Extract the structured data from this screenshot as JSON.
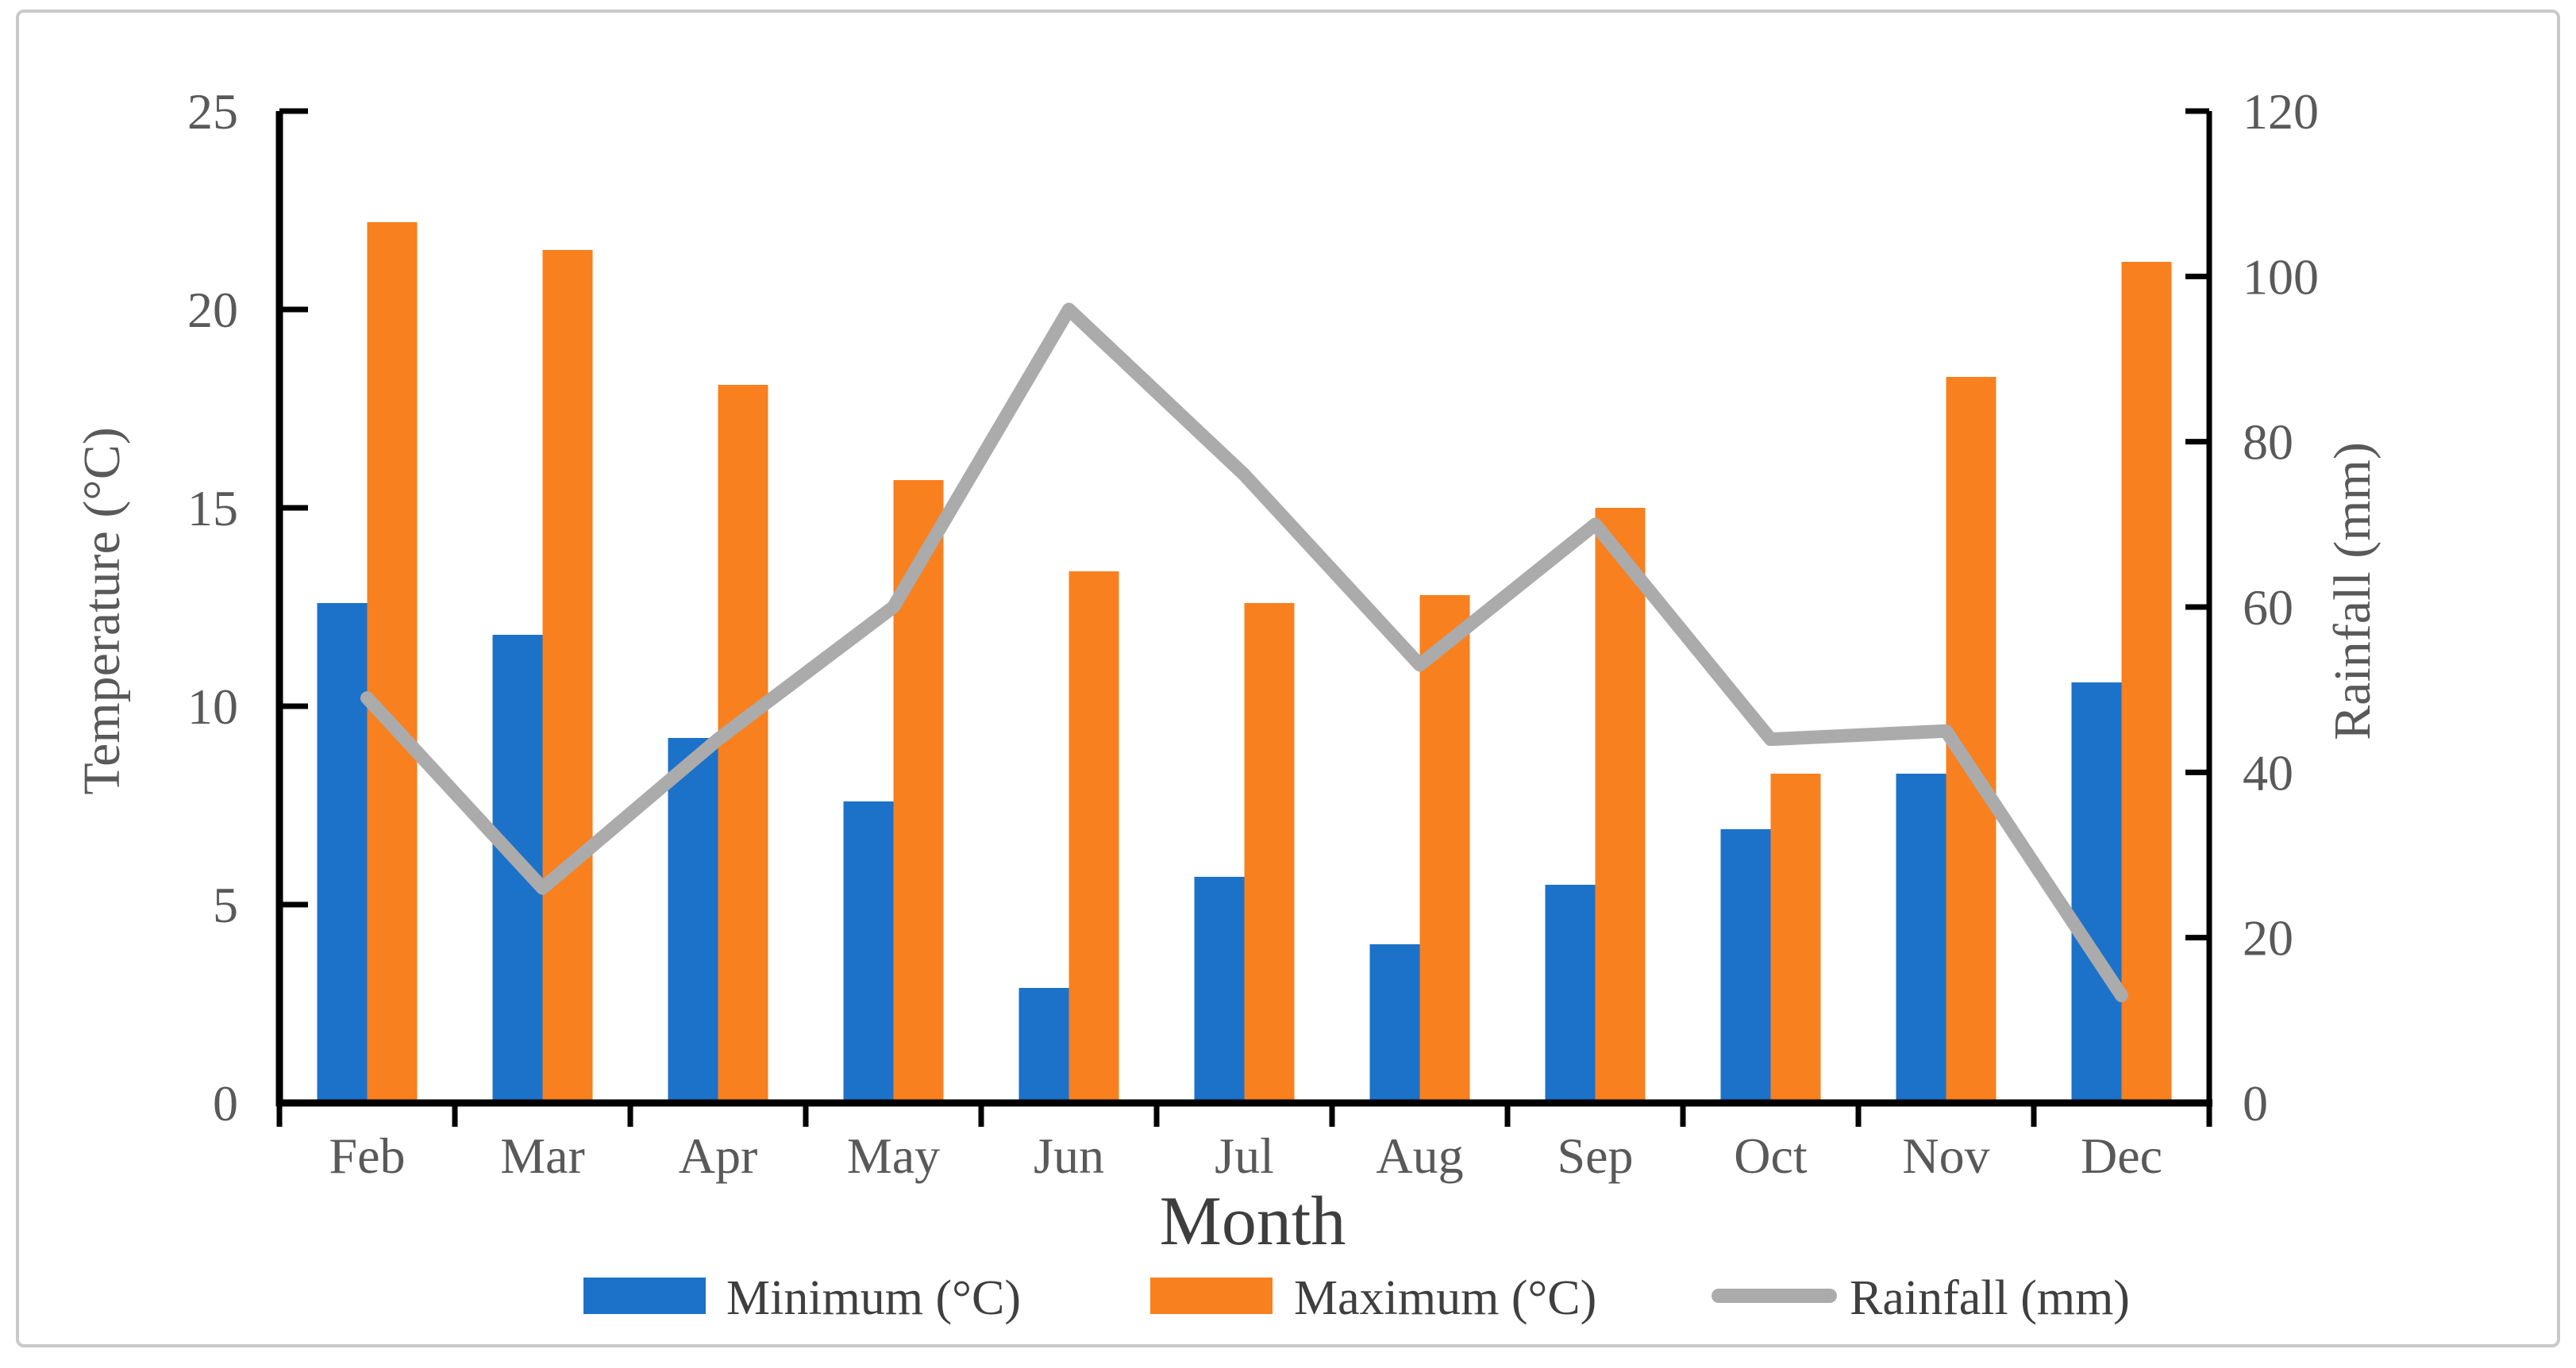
{
  "chart_data": {
    "type": "combo-bar-line",
    "categories": [
      "Feb",
      "Mar",
      "Apr",
      "May",
      "Jun",
      "Jul",
      "Aug",
      "Sep",
      "Oct",
      "Nov",
      "Dec"
    ],
    "series": [
      {
        "name": "Minimum (°C)",
        "type": "bar",
        "axis": "left",
        "color": "#1C72C8",
        "values": [
          12.6,
          11.8,
          9.2,
          7.6,
          2.9,
          5.7,
          4.0,
          5.5,
          6.9,
          8.3,
          10.6
        ]
      },
      {
        "name": "Maximum (°C)",
        "type": "bar",
        "axis": "left",
        "color": "#F8801F",
        "values": [
          22.2,
          21.5,
          18.1,
          15.7,
          13.4,
          12.6,
          12.8,
          15.0,
          8.3,
          18.3,
          21.2
        ]
      },
      {
        "name": "Rainfall (mm)",
        "type": "line",
        "axis": "right",
        "color": "#ABABAB",
        "values": [
          49,
          26,
          44,
          60,
          96,
          76,
          53,
          70,
          44,
          45,
          13
        ]
      }
    ],
    "xlabel": "Month",
    "ylabel_left": "Temperature (°C)",
    "ylabel_right": "Rainfall (mm)",
    "ylim_left": [
      0,
      25
    ],
    "ylim_right": [
      0,
      120
    ],
    "yticks_left": [
      "0",
      "5",
      "10",
      "15",
      "20",
      "25"
    ],
    "yticks_right": [
      "0",
      "20",
      "40",
      "60",
      "80",
      "100",
      "120"
    ],
    "grid": false,
    "legend_position": "bottom"
  },
  "colors": {
    "bar_minimum": "#1C72C8",
    "bar_maximum": "#F8801F",
    "rainfall_line": "#ABABAB",
    "axis_line": "#000000",
    "tick_label": "#595959",
    "axis_title": "#595959",
    "x_label": "#3E3E3E",
    "legend_text": "#3F3F3F",
    "figure_border": "#C9C9C9",
    "background": "#FFFFFF"
  }
}
